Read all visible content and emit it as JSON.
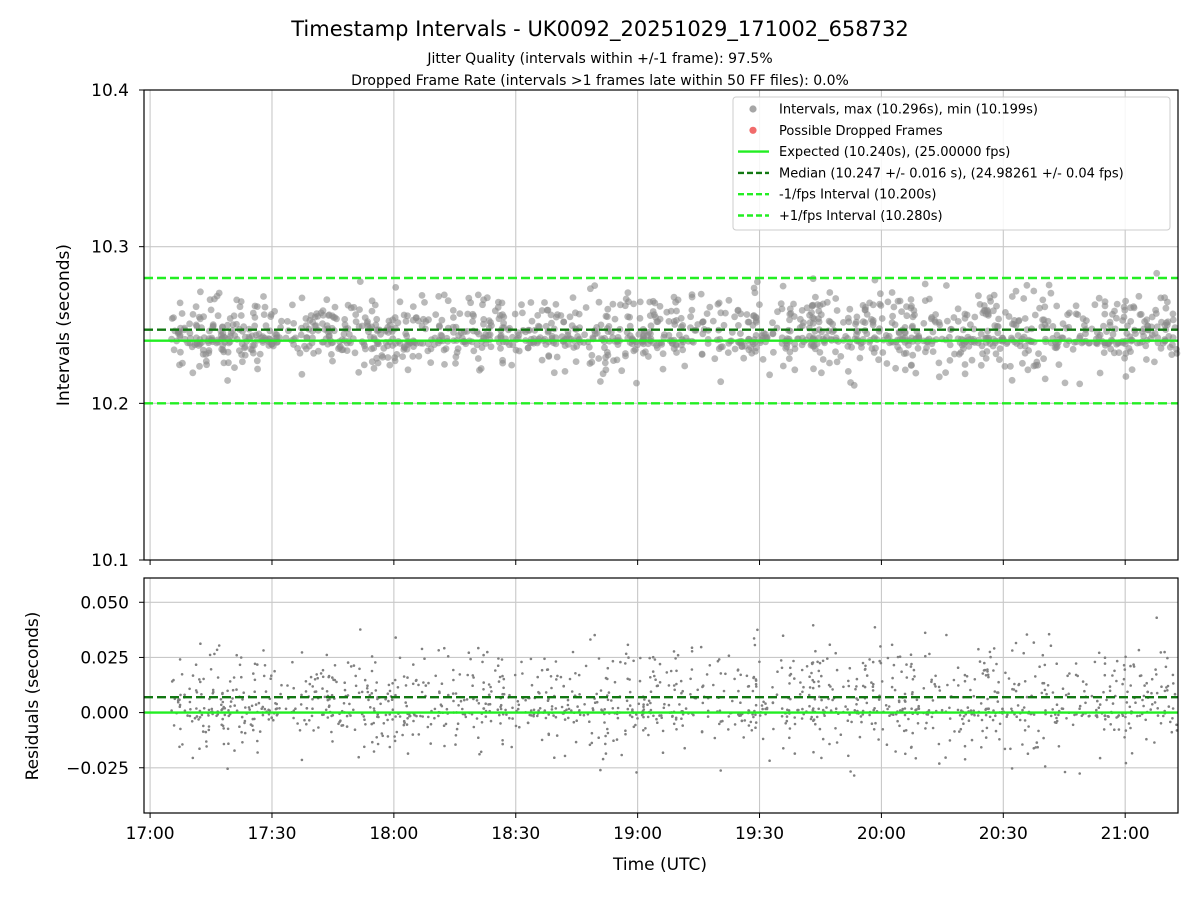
{
  "figure": {
    "title": "Timestamp Intervals - UK0092_20251029_171002_658732",
    "subtitle_1": "Jitter Quality (intervals within +/-1 frame): 97.5%",
    "subtitle_2": "Dropped Frame Rate (intervals >1 frames late within 50 FF files): 0.0%"
  },
  "colors": {
    "scatter_gray": "#808080",
    "dropped_red": "#ef5b5b",
    "expected_green": "#22ee22",
    "median_darkgreen": "#117711",
    "grid": "#c8c8c8"
  },
  "chart_data": [
    {
      "type": "scatter",
      "panel": "intervals",
      "ylabel": "Intervals (seconds)",
      "xlabel": "",
      "ylim": [
        10.1,
        10.4
      ],
      "yticks": [
        "10.1",
        "10.2",
        "10.3",
        "10.4"
      ],
      "xlim_minutes_since_1700": [
        -1.5,
        253
      ],
      "xticks_minutes": [
        0,
        30,
        60,
        90,
        120,
        150,
        180,
        210,
        240
      ],
      "grid": true,
      "series_meta": {
        "n_points": 1400,
        "x_range_minutes": [
          5,
          253
        ],
        "center": 10.246,
        "spread": 0.016,
        "max": 10.296,
        "min": 10.199
      },
      "hlines": [
        {
          "name": "Expected",
          "y": 10.24,
          "style": "solid",
          "color": "#22ee22"
        },
        {
          "name": "Median",
          "y": 10.247,
          "style": "dashed",
          "color": "#117711"
        },
        {
          "name": "-1/fps Interval",
          "y": 10.2,
          "style": "dashed",
          "color": "#22ee22"
        },
        {
          "name": "+1/fps Interval",
          "y": 10.28,
          "style": "dashed",
          "color": "#22ee22"
        }
      ],
      "legend": {
        "placement": "top-right",
        "entries": [
          {
            "label": "Intervals, max (10.296s), min (10.199s)",
            "kind": "dot",
            "color": "#a6a6a6"
          },
          {
            "label": "Possible Dropped Frames",
            "kind": "dot",
            "color": "#ef5b5b"
          },
          {
            "label": "Expected (10.240s), (25.00000 fps)",
            "kind": "solid",
            "color": "#22ee22"
          },
          {
            "label": "Median (10.247 +/- 0.016 s), (24.98261 +/- 0.04 fps)",
            "kind": "dashed",
            "color": "#117711"
          },
          {
            "label": "-1/fps Interval (10.200s)",
            "kind": "dashed",
            "color": "#22ee22"
          },
          {
            "label": "+1/fps Interval (10.280s)",
            "kind": "dashed",
            "color": "#22ee22"
          }
        ]
      }
    },
    {
      "type": "scatter",
      "panel": "residuals",
      "ylabel": "Residuals (seconds)",
      "xlabel": "Time (UTC)",
      "ylim": [
        -0.0455,
        0.061
      ],
      "yticks": [
        "−0.025",
        "0.000",
        "0.025",
        "0.050"
      ],
      "ytick_values": [
        -0.025,
        0,
        0.025,
        0.05
      ],
      "xticks": [
        "17:00",
        "17:30",
        "18:00",
        "18:30",
        "19:00",
        "19:30",
        "20:00",
        "20:30",
        "21:00"
      ],
      "grid": true,
      "hlines": [
        {
          "name": "Median residual",
          "y": 0.007,
          "style": "dashed",
          "color": "#117711"
        },
        {
          "name": "Zero",
          "y": 0.0,
          "style": "solid",
          "color": "#22ee22"
        }
      ]
    }
  ]
}
